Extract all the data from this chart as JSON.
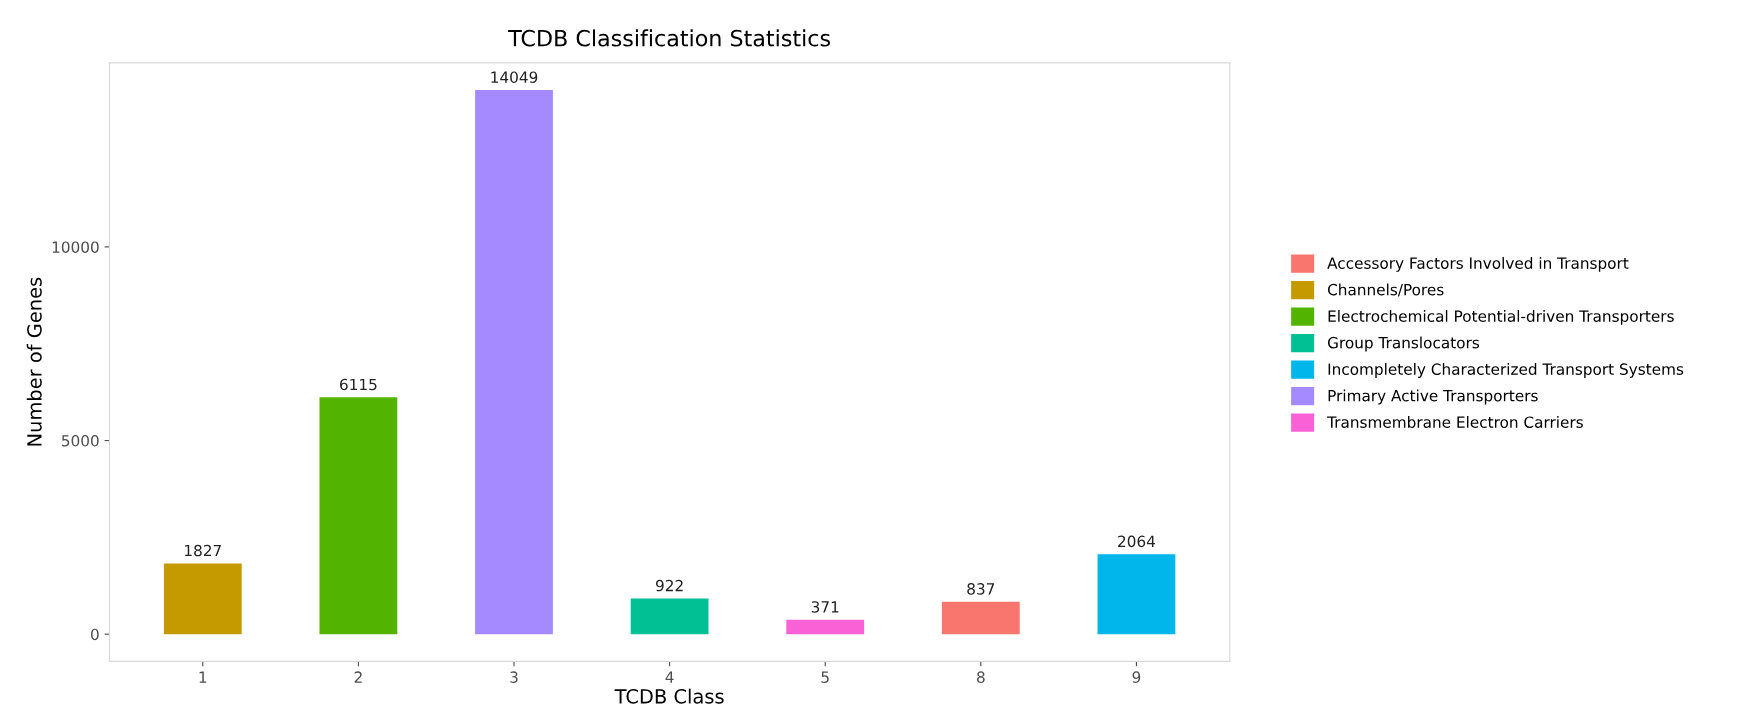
{
  "chart_data": {
    "type": "bar",
    "title": "TCDB Classification Statistics",
    "xlabel": "TCDB Class",
    "ylabel": "Number of Genes",
    "categories": [
      "1",
      "2",
      "3",
      "4",
      "5",
      "8",
      "9"
    ],
    "series": [
      {
        "name": "Accessory Factors Involved in Transport",
        "color": "#f8766d",
        "values": [
          null,
          null,
          null,
          null,
          null,
          837,
          null
        ]
      },
      {
        "name": "Channels/Pores",
        "color": "#c49a00",
        "values": [
          1827,
          null,
          null,
          null,
          null,
          null,
          null
        ]
      },
      {
        "name": "Electrochemical Potential-driven Transporters",
        "color": "#53b400",
        "values": [
          null,
          6115,
          null,
          null,
          null,
          null,
          null
        ]
      },
      {
        "name": "Group Translocators",
        "color": "#00c094",
        "values": [
          null,
          null,
          null,
          922,
          null,
          null,
          null
        ]
      },
      {
        "name": "Incompletely Characterized Transport Systems",
        "color": "#00b6eb",
        "values": [
          null,
          null,
          null,
          null,
          null,
          null,
          2064
        ]
      },
      {
        "name": "Primary Active Transporters",
        "color": "#a58aff",
        "values": [
          null,
          null,
          14049,
          null,
          null,
          null,
          null
        ]
      },
      {
        "name": "Transmembrane Electron Carriers",
        "color": "#fb61d7",
        "values": [
          null,
          null,
          null,
          null,
          371,
          null,
          null
        ]
      }
    ],
    "ylim": [
      -702,
      14751
    ],
    "yticks": [
      0,
      5000,
      10000
    ],
    "grid": false,
    "legend": "right",
    "data_labels": true
  }
}
